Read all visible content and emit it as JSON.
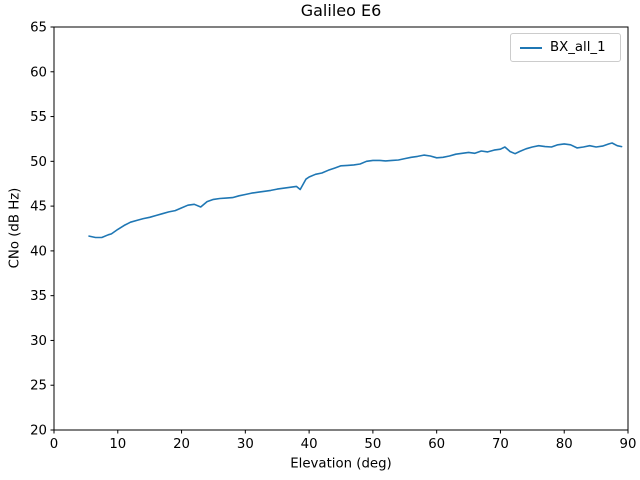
{
  "chart_data": {
    "type": "line",
    "title": "Galileo E6",
    "xlabel": "Elevation (deg)",
    "ylabel": "CNo (dB Hz)",
    "xlim": [
      0,
      90
    ],
    "ylim": [
      20,
      65
    ],
    "xticks": [
      0,
      10,
      20,
      30,
      40,
      50,
      60,
      70,
      80,
      90
    ],
    "yticks": [
      20,
      25,
      30,
      35,
      40,
      45,
      50,
      55,
      60,
      65
    ],
    "grid": false,
    "legend": {
      "position": "upper right",
      "entries": [
        {
          "label": "BX_all_1",
          "color": "#1f77b4"
        }
      ]
    },
    "colors": {
      "background": "#ffffff",
      "spine": "#000000",
      "text": "#000000",
      "legend_border": "#cccccc",
      "line": "#1f77b4"
    },
    "series": [
      {
        "name": "BX_all_1",
        "color": "#1f77b4",
        "points": [
          [
            5.5,
            41.65
          ],
          [
            6.5,
            41.5
          ],
          [
            7.5,
            41.5
          ],
          [
            8.5,
            41.8
          ],
          [
            9,
            41.9
          ],
          [
            10,
            42.4
          ],
          [
            11,
            42.85
          ],
          [
            12,
            43.2
          ],
          [
            13,
            43.4
          ],
          [
            14,
            43.6
          ],
          [
            15,
            43.75
          ],
          [
            16,
            43.95
          ],
          [
            17,
            44.15
          ],
          [
            18,
            44.35
          ],
          [
            19,
            44.5
          ],
          [
            20,
            44.8
          ],
          [
            21,
            45.1
          ],
          [
            22,
            45.2
          ],
          [
            23,
            44.9
          ],
          [
            24,
            45.5
          ],
          [
            25,
            45.75
          ],
          [
            26,
            45.85
          ],
          [
            27,
            45.9
          ],
          [
            28,
            45.95
          ],
          [
            29,
            46.15
          ],
          [
            30,
            46.3
          ],
          [
            31,
            46.45
          ],
          [
            32,
            46.55
          ],
          [
            33,
            46.65
          ],
          [
            34,
            46.75
          ],
          [
            35,
            46.9
          ],
          [
            36,
            47.0
          ],
          [
            37,
            47.1
          ],
          [
            38,
            47.2
          ],
          [
            38.6,
            46.85
          ],
          [
            39.5,
            48.0
          ],
          [
            40,
            48.25
          ],
          [
            41,
            48.55
          ],
          [
            42,
            48.7
          ],
          [
            43,
            49.0
          ],
          [
            44,
            49.25
          ],
          [
            45,
            49.5
          ],
          [
            46,
            49.55
          ],
          [
            47,
            49.6
          ],
          [
            48,
            49.7
          ],
          [
            49,
            50.0
          ],
          [
            50,
            50.1
          ],
          [
            51,
            50.1
          ],
          [
            52,
            50.05
          ],
          [
            53,
            50.1
          ],
          [
            54,
            50.15
          ],
          [
            55,
            50.3
          ],
          [
            56,
            50.45
          ],
          [
            57,
            50.55
          ],
          [
            58,
            50.7
          ],
          [
            59,
            50.6
          ],
          [
            60,
            50.4
          ],
          [
            61,
            50.45
          ],
          [
            62,
            50.6
          ],
          [
            63,
            50.8
          ],
          [
            64,
            50.9
          ],
          [
            65,
            51.0
          ],
          [
            66,
            50.9
          ],
          [
            67,
            51.15
          ],
          [
            68,
            51.05
          ],
          [
            69,
            51.25
          ],
          [
            70,
            51.35
          ],
          [
            70.7,
            51.6
          ],
          [
            71.5,
            51.1
          ],
          [
            72.3,
            50.85
          ],
          [
            73,
            51.1
          ],
          [
            74,
            51.4
          ],
          [
            75,
            51.6
          ],
          [
            76,
            51.75
          ],
          [
            77,
            51.65
          ],
          [
            78,
            51.6
          ],
          [
            79,
            51.85
          ],
          [
            80,
            51.95
          ],
          [
            81,
            51.85
          ],
          [
            82,
            51.5
          ],
          [
            83,
            51.6
          ],
          [
            84,
            51.75
          ],
          [
            85,
            51.6
          ],
          [
            86,
            51.7
          ],
          [
            87,
            51.95
          ],
          [
            87.5,
            52.05
          ],
          [
            88.3,
            51.75
          ],
          [
            89,
            51.65
          ]
        ]
      }
    ]
  }
}
